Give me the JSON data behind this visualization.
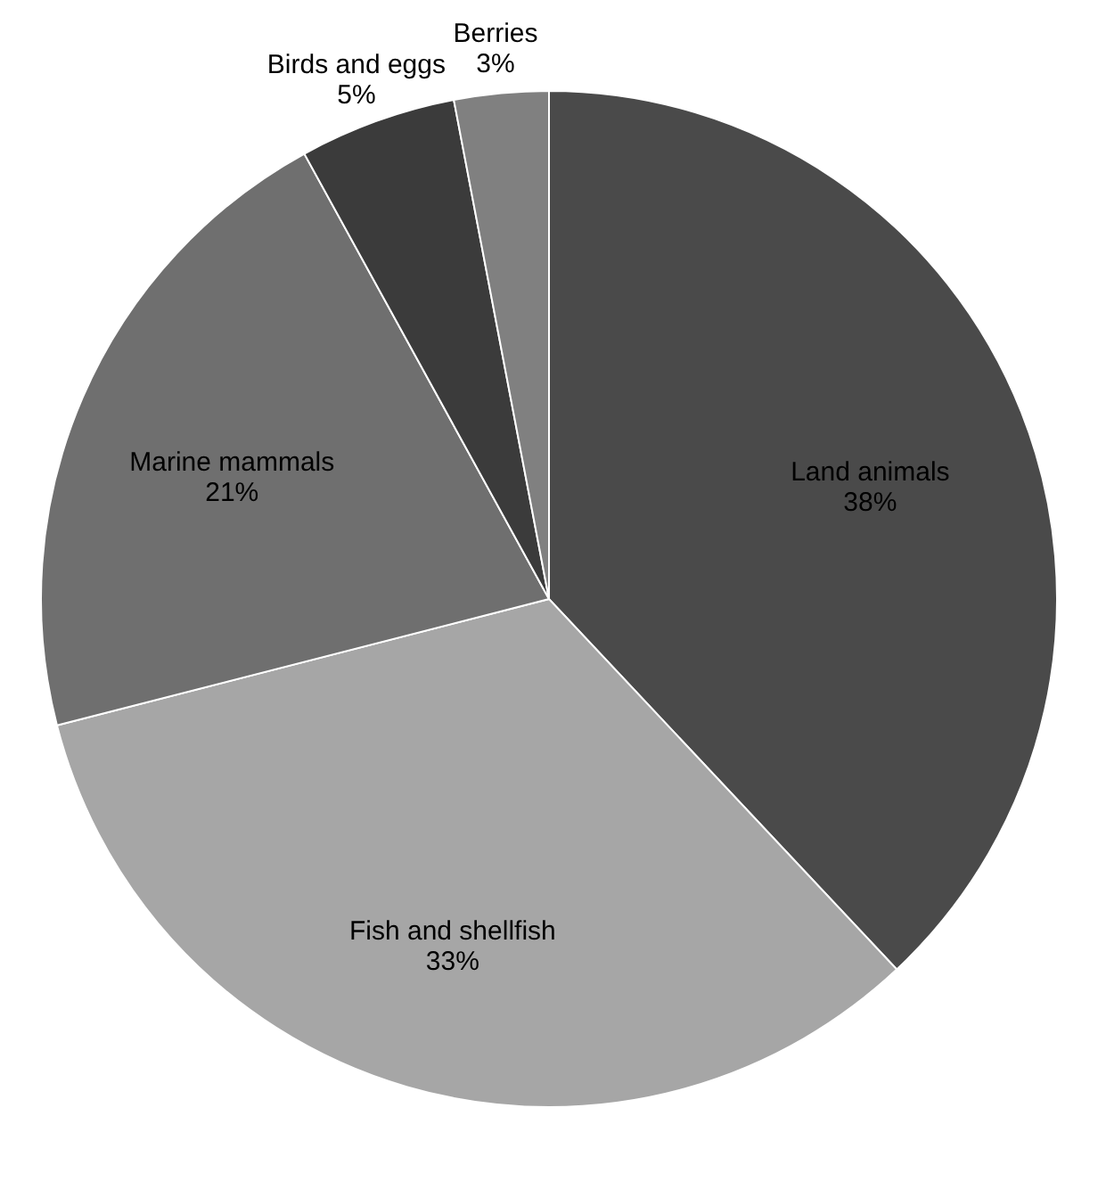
{
  "chart_data": {
    "type": "pie",
    "categories": [
      "Land animals",
      "Fish and shellfish",
      "Marine mammals",
      "Birds and eggs",
      "Berries"
    ],
    "values": [
      38,
      33,
      21,
      5,
      3
    ],
    "value_labels": [
      "38%",
      "33%",
      "21%",
      "5%",
      "3%"
    ],
    "colors": [
      "#4a4a4a",
      "#a6a6a6",
      "#6f6f6f",
      "#3b3b3b",
      "#808080"
    ]
  }
}
